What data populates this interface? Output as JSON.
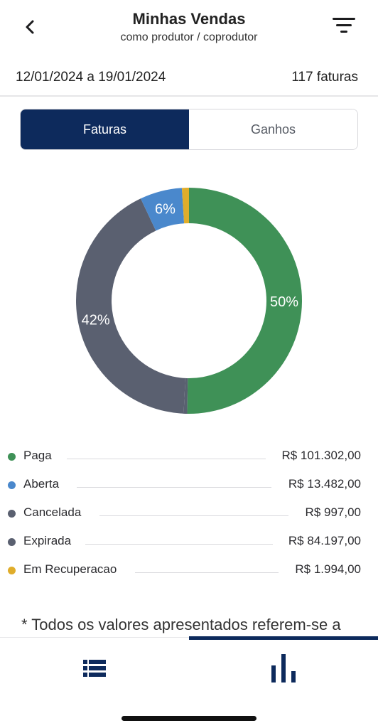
{
  "header": {
    "title": "Minhas Vendas",
    "subtitle": "como produtor / coprodutor",
    "back_icon": "chevron-left-icon",
    "filter_icon": "filter-icon"
  },
  "period": {
    "range": "12/01/2024 a 19/01/2024",
    "count": "117 faturas"
  },
  "segments": {
    "faturas": "Faturas",
    "ganhos": "Ganhos",
    "active": "faturas",
    "active_color": "#0d2a5c"
  },
  "chart_data": {
    "type": "pie",
    "donut": true,
    "slices": [
      {
        "name": "Paga",
        "percent": 50,
        "label": "50%",
        "color": "#3f9157"
      },
      {
        "name": "Cancelada",
        "percent": 0.5,
        "label": "",
        "color": "#596070"
      },
      {
        "name": "Expirada",
        "percent": 42,
        "label": "42%",
        "color": "#5a6070"
      },
      {
        "name": "Aberta",
        "percent": 6,
        "label": "6%",
        "color": "#4a88cc"
      },
      {
        "name": "Em Recuperacao",
        "percent": 1,
        "label": "",
        "color": "#e0ad2b"
      }
    ]
  },
  "legend": [
    {
      "label": "Paga",
      "value": "R$ 101.302,00",
      "color": "#3f9157"
    },
    {
      "label": "Aberta",
      "value": "R$ 13.482,00",
      "color": "#4a88cc"
    },
    {
      "label": "Cancelada",
      "value": "R$ 997,00",
      "color": "#5a6070"
    },
    {
      "label": "Expirada",
      "value": "R$ 84.197,00",
      "color": "#5a6070"
    },
    {
      "label": "Em Recuperacao",
      "value": "R$ 1.994,00",
      "color": "#e0ad2b"
    }
  ],
  "footnote": "* Todos os valores apresentados referem-se a",
  "tabbar": {
    "tabs": [
      {
        "icon": "list-icon",
        "active": false
      },
      {
        "icon": "bar-chart-icon",
        "active": true
      }
    ]
  }
}
